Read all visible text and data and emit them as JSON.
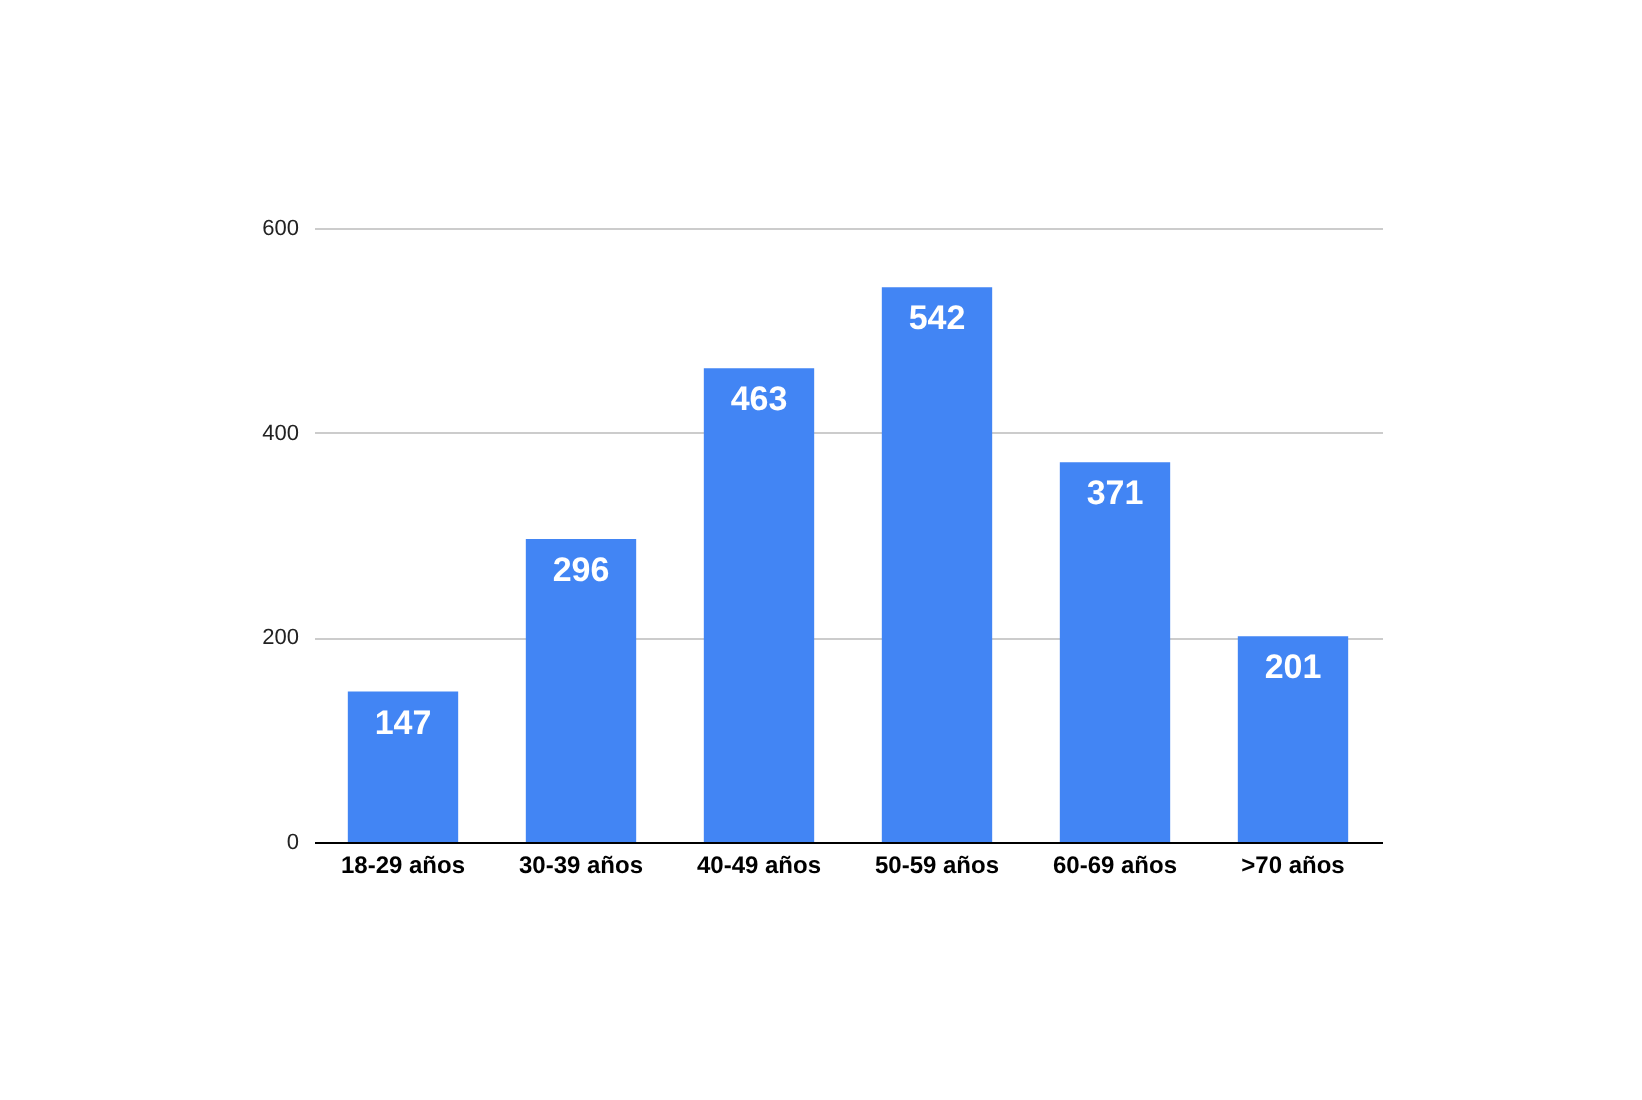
{
  "chart_data": {
    "type": "bar",
    "categories": [
      "18-29 años",
      "30-39 años",
      "40-49 años",
      "50-59 años",
      "60-69 años",
      ">70 años"
    ],
    "values": [
      147,
      296,
      463,
      542,
      371,
      201
    ],
    "color": "#4285f4",
    "ylim": [
      0,
      600
    ],
    "yticks": [
      0,
      200,
      400,
      600
    ],
    "grid": "y",
    "data_labels": true
  }
}
